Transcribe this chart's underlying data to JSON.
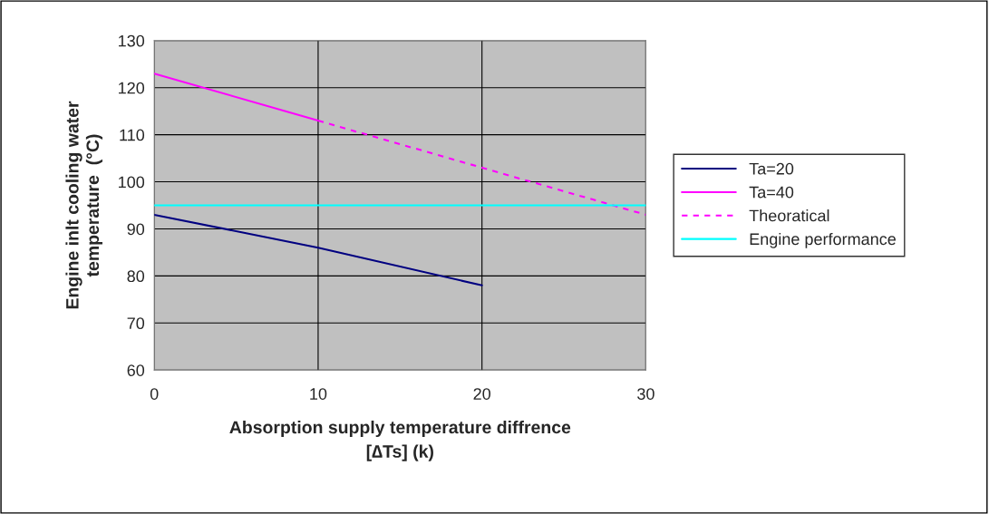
{
  "chart_data": {
    "type": "line",
    "xlabel": "Absorption supply temperature diffrence\n[∆Ts] (k)",
    "ylabel": "Engine inlt cooling water\ntemperature  (°C)",
    "series": [
      {
        "name": "Ta=20",
        "color": "#000080",
        "x": [
          0,
          10,
          20
        ],
        "values": [
          93,
          86,
          78
        ],
        "line_style": "solid"
      },
      {
        "name": "Ta=40",
        "color": "#ff00ff",
        "x": [
          0,
          10
        ],
        "values": [
          123,
          113
        ],
        "line_style": "solid"
      },
      {
        "name": "Theoratical",
        "color": "#ff00ff",
        "x": [
          10,
          20,
          30
        ],
        "values": [
          113,
          103,
          93
        ],
        "line_style": "dashed"
      },
      {
        "name": "Engine performance",
        "color": "#00ffff",
        "x": [
          0,
          30
        ],
        "values": [
          95,
          95
        ],
        "line_style": "solid"
      }
    ],
    "xlim": [
      0,
      30
    ],
    "xticks": [
      0,
      10,
      20,
      30
    ],
    "ylim": [
      60,
      130
    ],
    "yticks": [
      60,
      70,
      80,
      90,
      100,
      110,
      120,
      130
    ],
    "grid": true,
    "legend": "right",
    "marker": "none"
  }
}
